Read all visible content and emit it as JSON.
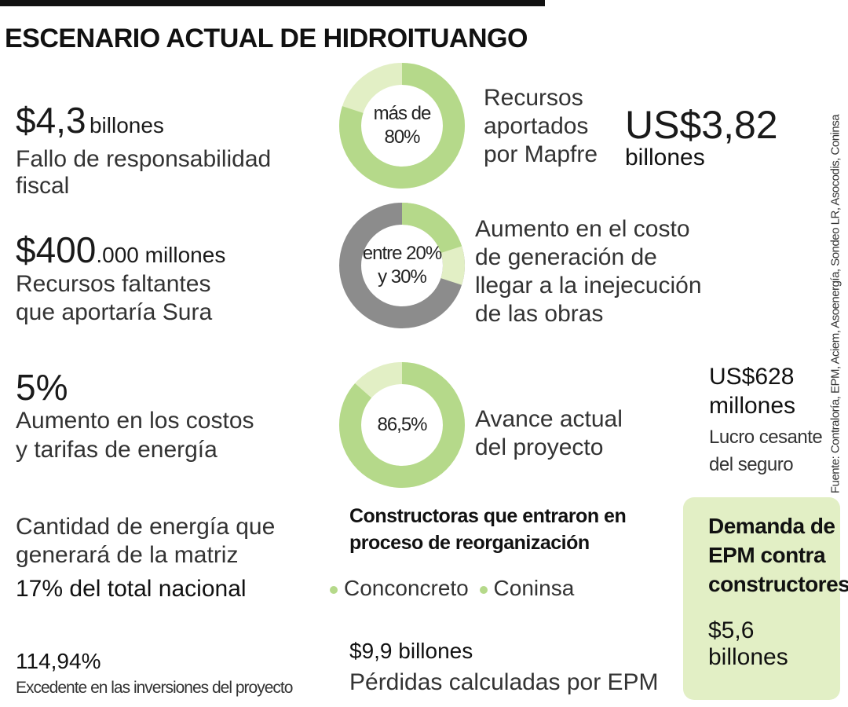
{
  "title": "ESCENARIO ACTUAL DE HIDROITUANGO",
  "left": {
    "s1": {
      "amount": "$4,3",
      "unit": "billones",
      "desc": "Fallo de responsabilidad fiscal"
    },
    "s2": {
      "amount": "$400",
      "unit": ".000 millones",
      "desc1": "Recursos faltantes",
      "desc2": "que aportaría Sura"
    },
    "s3": {
      "amount": "5%",
      "desc1": "Aumento en los costos",
      "desc2": "y tarifas de energía"
    },
    "s4": {
      "line1": "Cantidad de energía que",
      "line2": "generará de la matriz",
      "highlight": "17% del total nacional"
    },
    "s5": {
      "amount": "114,94%",
      "desc": "Excedente en las inversiones del proyecto"
    }
  },
  "donuts": [
    {
      "label_line1": "más de",
      "label_line2": "80%",
      "value_pct": 80,
      "desc1": "Recursos",
      "desc2": "aportados",
      "desc3": "por Mapfre"
    },
    {
      "label_line1": "entre 20%",
      "label_line2": "y 30%",
      "value_pct": 25,
      "desc1": "Aumento en el costo",
      "desc2": "de generación de",
      "desc3": "llegar a la inejecución",
      "desc4": "de las obras"
    },
    {
      "label_line1": "86,5%",
      "value_pct": 86.5,
      "desc1": "Avance actual",
      "desc2": "del proyecto"
    }
  ],
  "right": {
    "mapfre": {
      "amount": "US$3,82",
      "unit": "billones"
    },
    "lucro": {
      "amount1": "US$628",
      "amount2": "millones",
      "desc1": "Lucro cesante",
      "desc2": "del seguro"
    }
  },
  "constructoras": {
    "title1": "Constructoras que entraron en",
    "title2": "proceso de reorganización",
    "items": [
      "Conconcreto",
      "Coninsa"
    ]
  },
  "perdidas": {
    "amount": "$9,9 billones",
    "desc": "Pérdidas calculadas por EPM"
  },
  "demanda": {
    "line1": "Demanda de",
    "line2": "EPM contra",
    "line3": "constructores",
    "amount1": "$5,6",
    "amount2": "billones"
  },
  "source": "Fuente: Contraloría, EPM, Aciem, Asoenergía, Sondeo LR, Asocodis, Coninsa",
  "colors": {
    "green": "#b5d98a",
    "light_green": "#e2efc5",
    "gray": "#8c8c8c",
    "box": "#e2efc5"
  }
}
